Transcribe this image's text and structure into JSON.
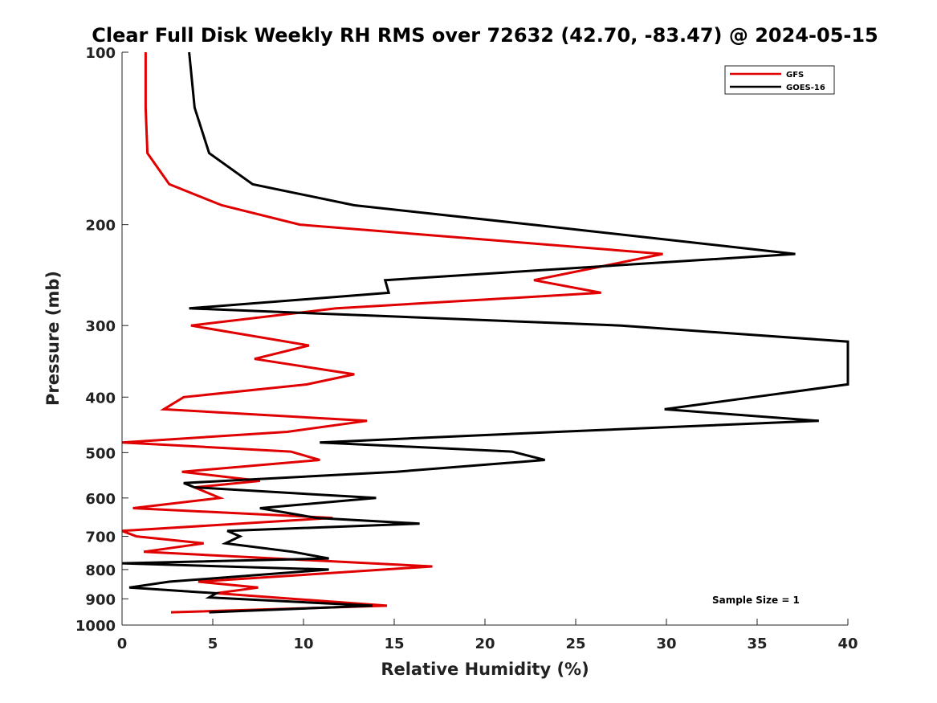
{
  "chart_data": {
    "type": "line",
    "title": "Clear Full Disk Weekly RH RMS over 72632 (42.70, -83.47) @ 2024-05-15",
    "xlabel": "Relative Humidity (%)",
    "ylabel": "Pressure (mb)",
    "xlim": [
      0,
      40
    ],
    "ylim": [
      100,
      1000
    ],
    "y_scale": "log",
    "y_reversed": true,
    "xticks": [
      0,
      5,
      10,
      15,
      20,
      25,
      30,
      35,
      40
    ],
    "yticks": [
      100,
      200,
      300,
      400,
      500,
      600,
      700,
      800,
      900,
      1000
    ],
    "grid": false,
    "legend_position": "top-right",
    "annotation": "Sample Size = 1",
    "series": [
      {
        "name": "GFS",
        "color": "#e00000",
        "points": [
          [
            1.3,
            100
          ],
          [
            1.3,
            125
          ],
          [
            1.4,
            150
          ],
          [
            2.6,
            170
          ],
          [
            5.5,
            185
          ],
          [
            9.8,
            200
          ],
          [
            29.8,
            225
          ],
          [
            22.7,
            250
          ],
          [
            26.4,
            263
          ],
          [
            11.8,
            280
          ],
          [
            3.8,
            300
          ],
          [
            10.3,
            325
          ],
          [
            7.3,
            343
          ],
          [
            12.8,
            365
          ],
          [
            10.2,
            380
          ],
          [
            3.4,
            400
          ],
          [
            2.3,
            420
          ],
          [
            13.5,
            440
          ],
          [
            9.1,
            460
          ],
          [
            0.0,
            480
          ],
          [
            9.3,
            498
          ],
          [
            10.9,
            515
          ],
          [
            3.3,
            540
          ],
          [
            7.6,
            560
          ],
          [
            4.0,
            575
          ],
          [
            5.4,
            600
          ],
          [
            0.6,
            625
          ],
          [
            11.6,
            650
          ],
          [
            0.0,
            685
          ],
          [
            0.8,
            700
          ],
          [
            4.5,
            720
          ],
          [
            1.2,
            745
          ],
          [
            17.1,
            790
          ],
          [
            4.2,
            840
          ],
          [
            7.5,
            860
          ],
          [
            5.2,
            880
          ],
          [
            14.6,
            925
          ],
          [
            2.7,
            950
          ]
        ]
      },
      {
        "name": "GOES-16",
        "color": "#000000",
        "points": [
          [
            3.7,
            100
          ],
          [
            4.0,
            125
          ],
          [
            4.8,
            150
          ],
          [
            7.2,
            170
          ],
          [
            12.8,
            185
          ],
          [
            22.6,
            200
          ],
          [
            37.1,
            225
          ],
          [
            14.5,
            250
          ],
          [
            14.7,
            263
          ],
          [
            3.7,
            280
          ],
          [
            27.5,
            300
          ],
          [
            40.0,
            320
          ],
          [
            40.0,
            380
          ],
          [
            34.8,
            400
          ],
          [
            29.9,
            420
          ],
          [
            38.4,
            440
          ],
          [
            24.0,
            460
          ],
          [
            10.9,
            480
          ],
          [
            21.5,
            498
          ],
          [
            23.3,
            515
          ],
          [
            15.1,
            540
          ],
          [
            3.4,
            565
          ],
          [
            4.0,
            575
          ],
          [
            14.0,
            600
          ],
          [
            7.6,
            625
          ],
          [
            10.7,
            650
          ],
          [
            16.4,
            665
          ],
          [
            5.8,
            685
          ],
          [
            6.5,
            700
          ],
          [
            5.7,
            720
          ],
          [
            9.4,
            745
          ],
          [
            11.4,
            765
          ],
          [
            0.0,
            780
          ],
          [
            11.4,
            800
          ],
          [
            2.6,
            840
          ],
          [
            0.4,
            860
          ],
          [
            5.2,
            880
          ],
          [
            4.8,
            895
          ],
          [
            13.8,
            925
          ],
          [
            4.8,
            950
          ]
        ]
      }
    ]
  }
}
